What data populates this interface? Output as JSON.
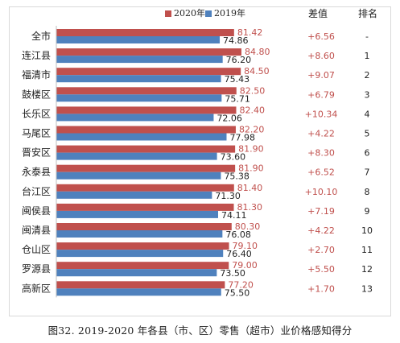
{
  "legend": {
    "series_2020": "2020年",
    "series_2019": "2019年"
  },
  "headers": {
    "diff": "差值",
    "rank": "排名"
  },
  "caption": "图32.  2019-2020 年各县（市、区）零售（超市）业价格感知得分",
  "colors": {
    "series_2020": "#c0504d",
    "series_2019": "#4f81bd"
  },
  "chart_data": {
    "type": "bar",
    "orientation": "horizontal",
    "categories": [
      "全市",
      "连江县",
      "福清市",
      "鼓楼区",
      "长乐区",
      "马尾区",
      "晋安区",
      "永泰县",
      "台江区",
      "闽侯县",
      "闽清县",
      "仓山区",
      "罗源县",
      "高新区"
    ],
    "series": [
      {
        "name": "2020年",
        "values": [
          81.42,
          84.8,
          84.5,
          82.5,
          82.4,
          82.2,
          81.9,
          81.9,
          81.4,
          81.3,
          80.3,
          79.1,
          79.0,
          77.2
        ]
      },
      {
        "name": "2019年",
        "values": [
          74.86,
          76.2,
          75.43,
          75.71,
          72.06,
          77.98,
          73.6,
          75.38,
          71.3,
          74.11,
          76.08,
          76.4,
          73.5,
          75.5
        ]
      }
    ],
    "value_labels_2020": [
      "81.42",
      "84.80",
      "84.50",
      "82.50",
      "82.40",
      "82.20",
      "81.90",
      "81.90",
      "81.40",
      "81.30",
      "80.30",
      "79.10",
      "79.00",
      "77.20"
    ],
    "value_labels_2019": [
      "74.86",
      "76.20",
      "75.43",
      "75.71",
      "72.06",
      "77.98",
      "73.60",
      "75.38",
      "71.30",
      "74.11",
      "76.08",
      "76.40",
      "73.50",
      "75.50"
    ],
    "differences": [
      "+6.56",
      "+8.60",
      "+9.07",
      "+6.79",
      "+10.34",
      "+4.22",
      "+8.30",
      "+6.52",
      "+10.10",
      "+7.19",
      "+4.22",
      "+2.70",
      "+5.50",
      "+1.70"
    ],
    "ranks": [
      "-",
      "1",
      "2",
      "3",
      "4",
      "5",
      "6",
      "7",
      "8",
      "9",
      "10",
      "11",
      "12",
      "13"
    ]
  }
}
